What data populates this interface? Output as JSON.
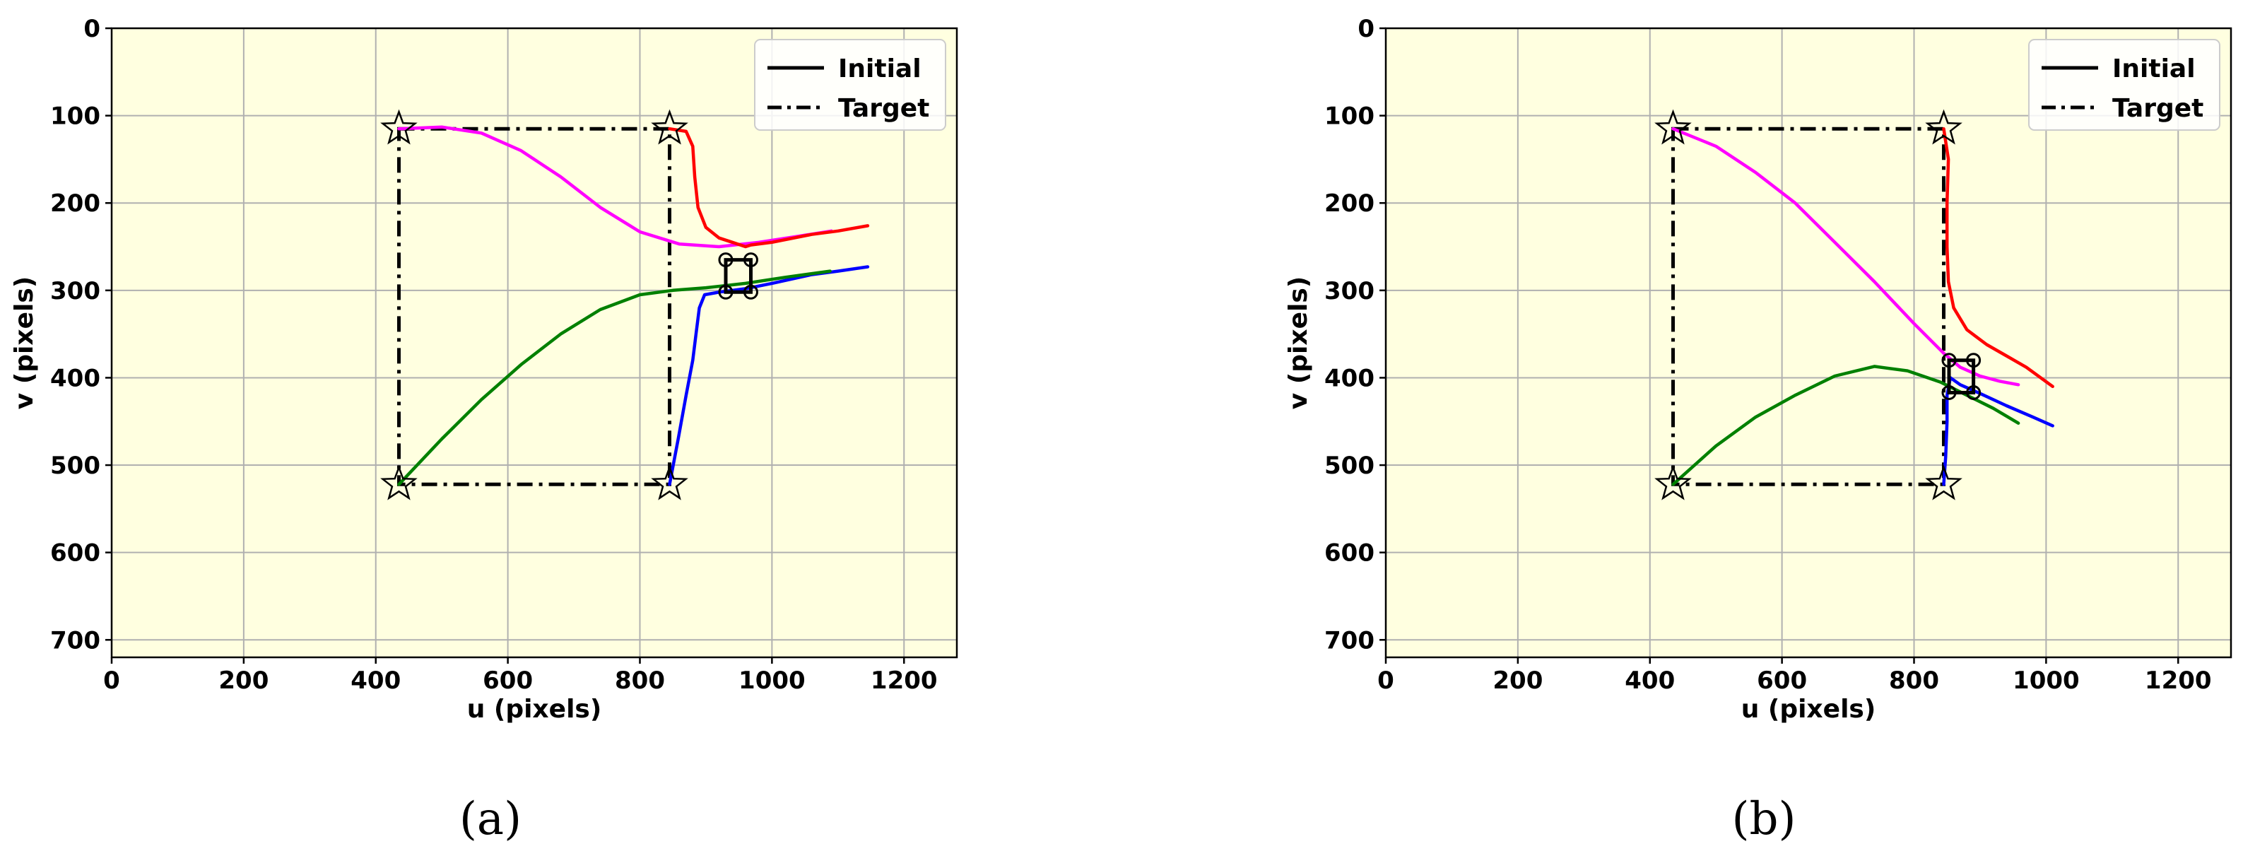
{
  "background_color": "#ffffe0",
  "grid": true,
  "legend": {
    "placement": "top-right",
    "entries": [
      {
        "label": "Initial",
        "style": "solid"
      },
      {
        "label": "Target",
        "style": "dashdot"
      }
    ]
  },
  "chart_data": [
    {
      "type": "line",
      "caption": "(a)",
      "xlabel": "u (pixels)",
      "ylabel": "v (pixels)",
      "xlim": [
        0,
        1280
      ],
      "ylim": [
        720,
        0
      ],
      "y_inverted": true,
      "xticks": [
        0,
        200,
        400,
        600,
        800,
        1000,
        1200
      ],
      "yticks": [
        0,
        100,
        200,
        300,
        400,
        500,
        600,
        700
      ],
      "target_points": [
        [
          435,
          115
        ],
        [
          845,
          115
        ],
        [
          845,
          522
        ],
        [
          435,
          522
        ]
      ],
      "initial_points": [
        [
          930,
          265
        ],
        [
          968,
          265
        ],
        [
          968,
          302
        ],
        [
          930,
          302
        ]
      ],
      "series": [
        {
          "color": "#ff00ff",
          "points": [
            [
              435,
              115
            ],
            [
              500,
              113
            ],
            [
              560,
              120
            ],
            [
              620,
              140
            ],
            [
              680,
              170
            ],
            [
              740,
              205
            ],
            [
              800,
              233
            ],
            [
              860,
              247
            ],
            [
              920,
              250
            ],
            [
              980,
              245
            ],
            [
              1040,
              238
            ],
            [
              1090,
              232
            ]
          ]
        },
        {
          "color": "#ff0000",
          "points": [
            [
              845,
              115
            ],
            [
              870,
              118
            ],
            [
              880,
              135
            ],
            [
              883,
              170
            ],
            [
              888,
              205
            ],
            [
              900,
              228
            ],
            [
              920,
              240
            ],
            [
              940,
              245
            ],
            [
              960,
              250
            ],
            [
              968,
              248
            ],
            [
              1000,
              245
            ],
            [
              1060,
              236
            ],
            [
              1100,
              232
            ],
            [
              1145,
              226
            ]
          ]
        },
        {
          "color": "#0000ff",
          "points": [
            [
              845,
              522
            ],
            [
              858,
              470
            ],
            [
              870,
              420
            ],
            [
              880,
              380
            ],
            [
              885,
              350
            ],
            [
              890,
              320
            ],
            [
              898,
              305
            ],
            [
              920,
              302
            ],
            [
              960,
              298
            ],
            [
              1000,
              292
            ],
            [
              1060,
              282
            ],
            [
              1100,
              278
            ],
            [
              1145,
              273
            ]
          ]
        },
        {
          "color": "#008000",
          "points": [
            [
              435,
              522
            ],
            [
              500,
              470
            ],
            [
              560,
              425
            ],
            [
              620,
              385
            ],
            [
              680,
              350
            ],
            [
              740,
              322
            ],
            [
              800,
              305
            ],
            [
              850,
              300
            ],
            [
              900,
              297
            ],
            [
              960,
              292
            ],
            [
              1020,
              285
            ],
            [
              1088,
              278
            ]
          ]
        }
      ]
    },
    {
      "type": "line",
      "caption": "(b)",
      "xlabel": "u (pixels)",
      "ylabel": "v (pixels)",
      "xlim": [
        0,
        1280
      ],
      "ylim": [
        720,
        0
      ],
      "y_inverted": true,
      "xticks": [
        0,
        200,
        400,
        600,
        800,
        1000,
        1200
      ],
      "yticks": [
        0,
        100,
        200,
        300,
        400,
        500,
        600,
        700
      ],
      "target_points": [
        [
          435,
          115
        ],
        [
          845,
          115
        ],
        [
          845,
          522
        ],
        [
          435,
          522
        ]
      ],
      "initial_points": [
        [
          853,
          380
        ],
        [
          890,
          380
        ],
        [
          890,
          417
        ],
        [
          853,
          417
        ]
      ],
      "series": [
        {
          "color": "#ff00ff",
          "points": [
            [
              435,
              115
            ],
            [
              500,
              135
            ],
            [
              560,
              165
            ],
            [
              620,
              200
            ],
            [
              680,
              245
            ],
            [
              740,
              290
            ],
            [
              800,
              338
            ],
            [
              845,
              372
            ],
            [
              870,
              388
            ],
            [
              900,
              398
            ],
            [
              930,
              404
            ],
            [
              958,
              408
            ]
          ]
        },
        {
          "color": "#ff0000",
          "points": [
            [
              845,
              115
            ],
            [
              852,
              150
            ],
            [
              850,
              200
            ],
            [
              850,
              250
            ],
            [
              852,
              290
            ],
            [
              860,
              320
            ],
            [
              880,
              345
            ],
            [
              910,
              362
            ],
            [
              940,
              375
            ],
            [
              970,
              388
            ],
            [
              1010,
              410
            ]
          ]
        },
        {
          "color": "#0000ff",
          "points": [
            [
              845,
              522
            ],
            [
              848,
              490
            ],
            [
              850,
              450
            ],
            [
              850,
              420
            ],
            [
              855,
              400
            ],
            [
              870,
              408
            ],
            [
              900,
              418
            ],
            [
              940,
              432
            ],
            [
              980,
              445
            ],
            [
              1010,
              455
            ]
          ]
        },
        {
          "color": "#008000",
          "points": [
            [
              435,
              522
            ],
            [
              500,
              478
            ],
            [
              560,
              445
            ],
            [
              620,
              420
            ],
            [
              680,
              398
            ],
            [
              740,
              387
            ],
            [
              790,
              392
            ],
            [
              840,
              405
            ],
            [
              880,
              420
            ],
            [
              920,
              435
            ],
            [
              958,
              452
            ]
          ]
        }
      ]
    }
  ]
}
